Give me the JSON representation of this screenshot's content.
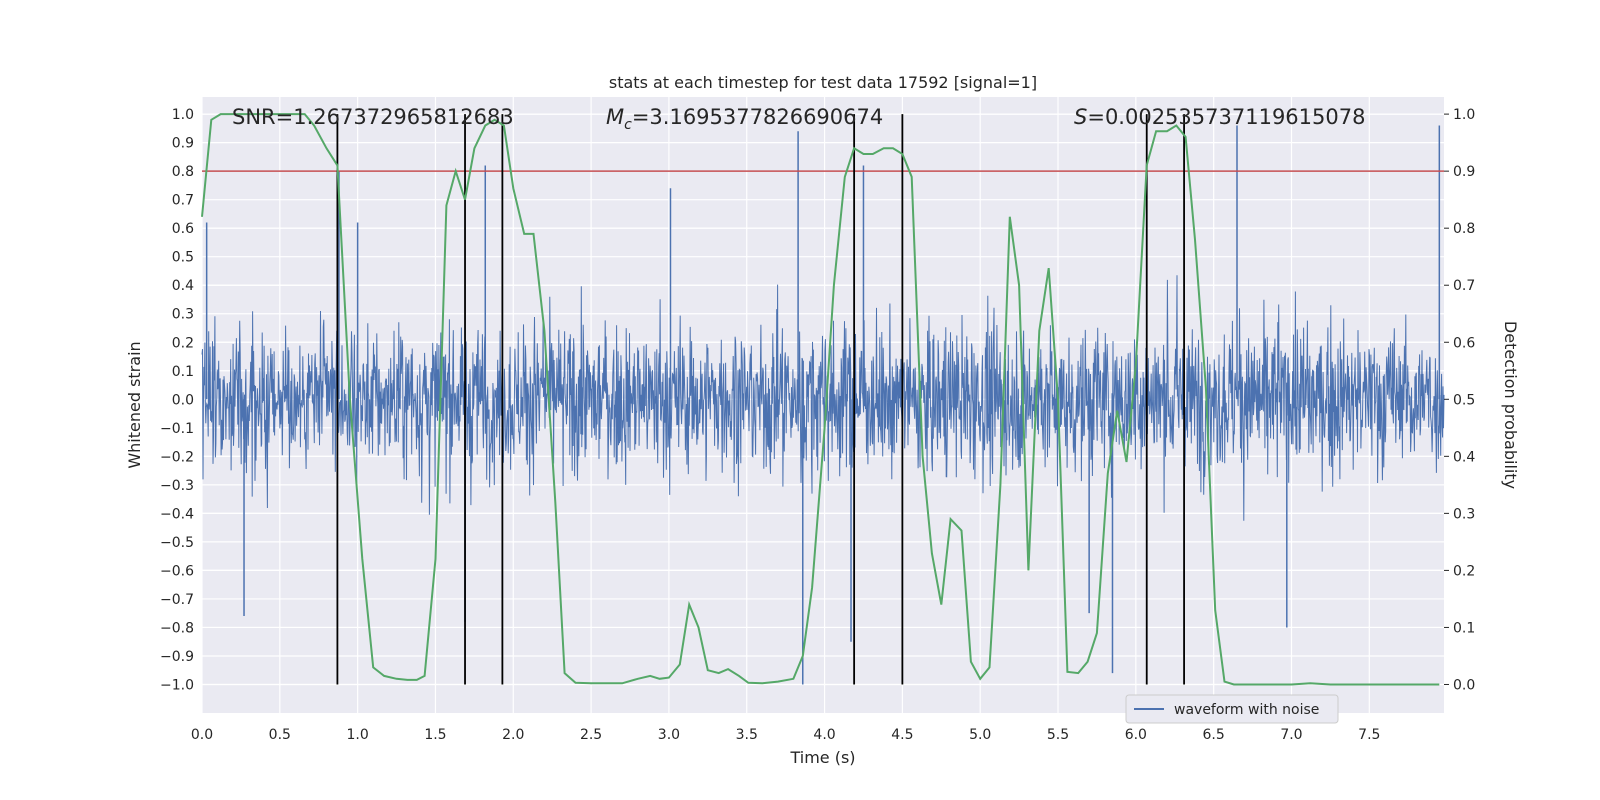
{
  "chart_data": {
    "type": "line",
    "title": "stats at each timestep for test data 17592 [signal=1]",
    "xlabel": "Time (s)",
    "ylabel_left": "Whitened strain",
    "ylabel_right": "Detection probability",
    "xlim": [
      0,
      7.98
    ],
    "ylim_left": [
      -1.1,
      1.06
    ],
    "ylim_right": [
      -0.05,
      1.03
    ],
    "x_ticks": [
      "0.0",
      "0.5",
      "1.0",
      "1.5",
      "2.0",
      "2.5",
      "3.0",
      "3.5",
      "4.0",
      "4.5",
      "5.0",
      "5.5",
      "6.0",
      "6.5",
      "7.0",
      "7.5"
    ],
    "y_ticks_left": [
      "1.0",
      "0.9",
      "0.8",
      "0.7",
      "0.6",
      "0.5",
      "0.4",
      "0.3",
      "0.2",
      "0.1",
      "0.0",
      "-0.1",
      "-0.2",
      "-0.3",
      "-0.4",
      "-0.5",
      "-0.6",
      "-0.7",
      "-0.8",
      "-0.9",
      "-1.0"
    ],
    "y_ticks_right": [
      "1.0",
      "0.9",
      "0.8",
      "0.7",
      "0.6",
      "0.5",
      "0.4",
      "0.3",
      "0.2",
      "0.1",
      "0.0"
    ],
    "grid": true,
    "legend_position": "bottom-right",
    "annotations": {
      "snr": "SNR=1.267372965812683",
      "mc_symbol": "M",
      "mc_sub": "c",
      "mc_value": "=3.1695377826690674",
      "s_symbol": "S",
      "s_value": "=0.002535737119615078"
    },
    "series": [
      {
        "name": "waveform with noise",
        "axis": "left",
        "color": "#4c72b0",
        "description_of_values": "dense noisy waveform sampled at high rate, amplitude mostly within ±0.45 with spikes to about ±0.96",
        "noise_envelope": 0.42,
        "peak_spikes": [
          {
            "x": 0.03,
            "y": 0.62
          },
          {
            "x": 0.27,
            "y": -0.76
          },
          {
            "x": 0.88,
            "y": 0.8
          },
          {
            "x": 1.0,
            "y": 0.62
          },
          {
            "x": 1.69,
            "y": -0.78
          },
          {
            "x": 1.82,
            "y": 0.82
          },
          {
            "x": 3.01,
            "y": 0.74
          },
          {
            "x": 3.83,
            "y": 0.94
          },
          {
            "x": 3.86,
            "y": -1.0
          },
          {
            "x": 4.17,
            "y": -0.85
          },
          {
            "x": 4.25,
            "y": 0.82
          },
          {
            "x": 5.7,
            "y": -0.75
          },
          {
            "x": 5.85,
            "y": -0.96
          },
          {
            "x": 6.65,
            "y": 0.96
          },
          {
            "x": 6.97,
            "y": -0.8
          },
          {
            "x": 7.95,
            "y": 0.96
          }
        ]
      },
      {
        "name": "",
        "axis": "right",
        "color": "#55a868",
        "x": [
          0.0,
          0.06,
          0.12,
          0.2,
          0.3,
          0.4,
          0.5,
          0.6,
          0.66,
          0.72,
          0.8,
          0.87,
          0.95,
          1.03,
          1.1,
          1.17,
          1.25,
          1.32,
          1.38,
          1.43,
          1.5,
          1.57,
          1.63,
          1.69,
          1.75,
          1.82,
          1.88,
          1.94,
          2.0,
          2.07,
          2.13,
          2.2,
          2.27,
          2.33,
          2.4,
          2.5,
          2.6,
          2.7,
          2.8,
          2.88,
          2.94,
          3.0,
          3.07,
          3.13,
          3.19,
          3.25,
          3.32,
          3.38,
          3.45,
          3.51,
          3.6,
          3.7,
          3.8,
          3.86,
          3.92,
          4.0,
          4.06,
          4.13,
          4.19,
          4.25,
          4.31,
          4.38,
          4.44,
          4.5,
          4.56,
          4.63,
          4.69,
          4.75,
          4.81,
          4.88,
          4.94,
          5.0,
          5.06,
          5.13,
          5.19,
          5.25,
          5.31,
          5.38,
          5.44,
          5.5,
          5.56,
          5.63,
          5.69,
          5.75,
          5.82,
          5.88,
          5.94,
          6.0,
          6.07,
          6.13,
          6.2,
          6.26,
          6.32,
          6.38,
          6.45,
          6.51,
          6.57,
          6.63,
          6.7,
          6.8,
          6.9,
          7.0,
          7.12,
          7.25,
          7.5,
          7.75,
          7.95
        ],
        "y": [
          0.82,
          0.99,
          1.0,
          1.0,
          1.0,
          1.0,
          1.0,
          1.0,
          1.0,
          0.98,
          0.94,
          0.91,
          0.5,
          0.22,
          0.03,
          0.015,
          0.01,
          0.008,
          0.008,
          0.015,
          0.22,
          0.84,
          0.9,
          0.85,
          0.94,
          0.98,
          0.99,
          0.98,
          0.87,
          0.79,
          0.79,
          0.62,
          0.32,
          0.02,
          0.003,
          0.002,
          0.002,
          0.002,
          0.01,
          0.015,
          0.01,
          0.012,
          0.035,
          0.14,
          0.1,
          0.025,
          0.02,
          0.027,
          0.015,
          0.003,
          0.002,
          0.005,
          0.01,
          0.05,
          0.17,
          0.45,
          0.7,
          0.89,
          0.94,
          0.93,
          0.93,
          0.94,
          0.94,
          0.93,
          0.89,
          0.4,
          0.23,
          0.14,
          0.29,
          0.27,
          0.04,
          0.01,
          0.03,
          0.35,
          0.82,
          0.7,
          0.2,
          0.62,
          0.73,
          0.5,
          0.022,
          0.02,
          0.04,
          0.09,
          0.37,
          0.48,
          0.39,
          0.56,
          0.91,
          0.97,
          0.97,
          0.98,
          0.96,
          0.78,
          0.52,
          0.13,
          0.005,
          0.0,
          0.0,
          0.0,
          0.0,
          0.0,
          0.002,
          0.0,
          0.0,
          0.0,
          0.0
        ]
      }
    ],
    "threshold": {
      "axis": "right",
      "value": 0.9,
      "color": "#c44e52"
    },
    "vertical_markers": [
      0.87,
      1.69,
      1.93,
      4.19,
      4.5,
      6.07,
      6.31
    ]
  }
}
